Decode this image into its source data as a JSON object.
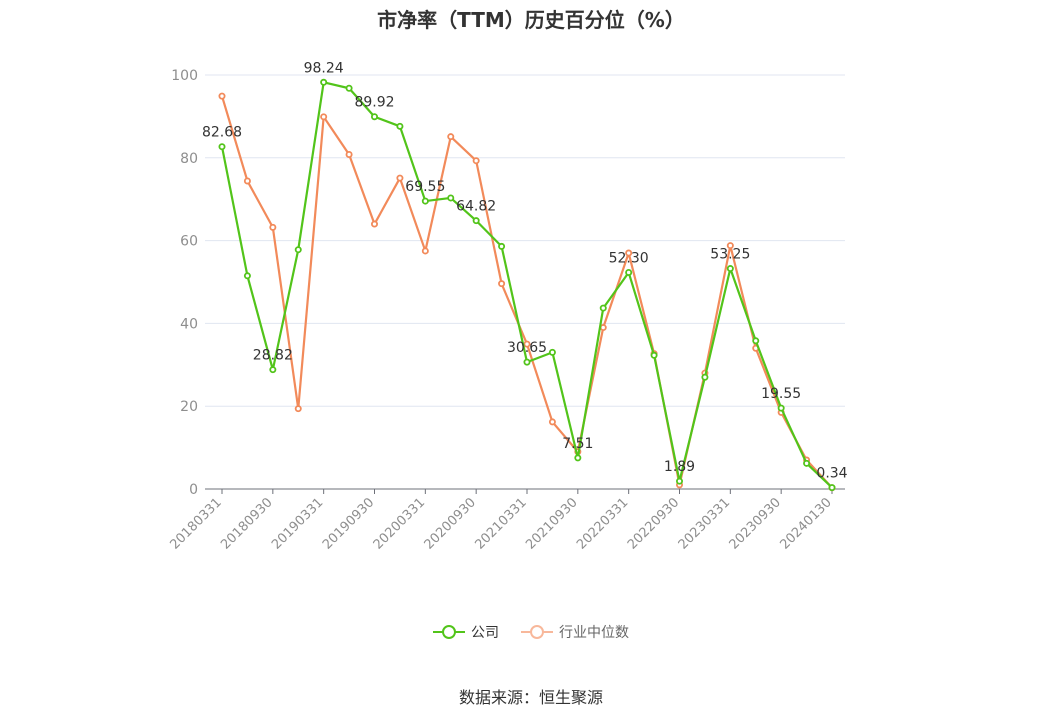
{
  "chart_data": {
    "type": "line",
    "title": "市净率（TTM）历史百分位（%）",
    "xlabel": "",
    "ylabel": "",
    "ylim": [
      0,
      100
    ],
    "yticks": [
      0,
      20,
      40,
      60,
      80,
      100
    ],
    "grid": true,
    "legend_position": "bottom",
    "x": [
      "20180331",
      "20180630",
      "20180930",
      "20181231",
      "20190331",
      "20190630",
      "20190930",
      "20191231",
      "20200331",
      "20200630",
      "20200930",
      "20201231",
      "20210331",
      "20210630",
      "20210930",
      "20211231",
      "20220331",
      "20220630",
      "20220930",
      "20221231",
      "20230331",
      "20230630",
      "20230930",
      "20231231",
      "20240130"
    ],
    "xtick_labels": [
      "20180331",
      "20180930",
      "20190331",
      "20190930",
      "20200331",
      "20200930",
      "20210331",
      "20210930",
      "20220331",
      "20220930",
      "20230331",
      "20230930",
      "20240130"
    ],
    "series": [
      {
        "name": "公司",
        "color": "#52c41a",
        "values": [
          82.68,
          51.5,
          28.82,
          57.8,
          98.24,
          96.8,
          89.92,
          87.6,
          69.55,
          70.3,
          64.82,
          58.6,
          30.65,
          33.0,
          7.51,
          43.7,
          52.3,
          32.3,
          1.89,
          27.0,
          53.25,
          35.8,
          19.55,
          6.2,
          0.34
        ],
        "labels": {
          "0": "82.68",
          "2": "28.82",
          "4": "98.24",
          "6": "89.92",
          "8": "69.55",
          "10": "64.82",
          "12": "30.65",
          "14": "7.51",
          "16": "52.30",
          "18": "1.89",
          "20": "53.25",
          "22": "19.55",
          "24": "0.34"
        }
      },
      {
        "name": "行业中位数",
        "color": "#f28a5a",
        "values": [
          94.9,
          74.4,
          63.2,
          19.4,
          89.9,
          80.8,
          64.0,
          75.1,
          57.5,
          85.1,
          79.3,
          49.6,
          35.0,
          16.2,
          9.0,
          39.0,
          57.0,
          32.7,
          1.0,
          28.0,
          58.8,
          34.0,
          18.5,
          7.0,
          0.3
        ]
      }
    ]
  },
  "source_text": "数据来源：恒生聚源"
}
